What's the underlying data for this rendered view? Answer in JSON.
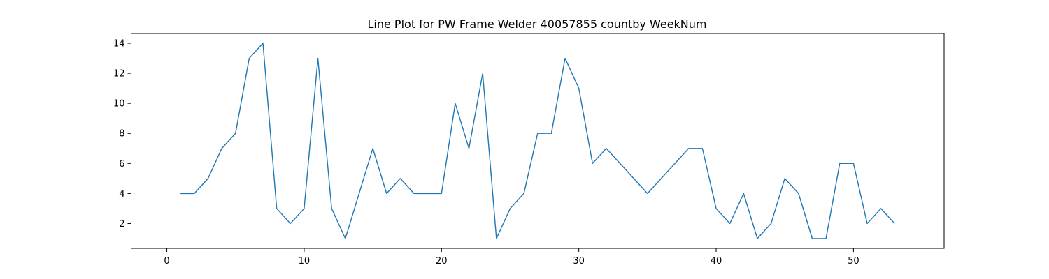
{
  "chart_data": {
    "type": "line",
    "title": "Line Plot for PW Frame Welder 40057855 countby WeekNum",
    "xlabel": "",
    "ylabel": "",
    "xlim": [
      -2.6,
      56.6
    ],
    "ylim": [
      0.35,
      14.65
    ],
    "xticks": [
      0,
      10,
      20,
      30,
      40,
      50
    ],
    "yticks": [
      2,
      4,
      6,
      8,
      10,
      12,
      14
    ],
    "grid": false,
    "series": [
      {
        "color": "#1f77b4",
        "x": [
          1,
          2,
          3,
          4,
          5,
          6,
          7,
          8,
          9,
          10,
          11,
          12,
          13,
          14,
          15,
          16,
          17,
          18,
          19,
          20,
          21,
          22,
          23,
          24,
          25,
          26,
          27,
          28,
          29,
          30,
          31,
          32,
          35,
          38,
          39,
          40,
          41,
          42,
          43,
          44,
          45,
          46,
          47,
          48,
          49,
          50,
          51,
          52,
          53
        ],
        "y": [
          4,
          4,
          5,
          7,
          8,
          13,
          14,
          3,
          2,
          3,
          13,
          3,
          1,
          4,
          7,
          4,
          5,
          4,
          4,
          4,
          10,
          7,
          12,
          1,
          3,
          4,
          8,
          8,
          13,
          11,
          6,
          7,
          4,
          7,
          7,
          3,
          2,
          4,
          1,
          2,
          5,
          4,
          1,
          1,
          6,
          6,
          2,
          3,
          2
        ]
      }
    ]
  }
}
